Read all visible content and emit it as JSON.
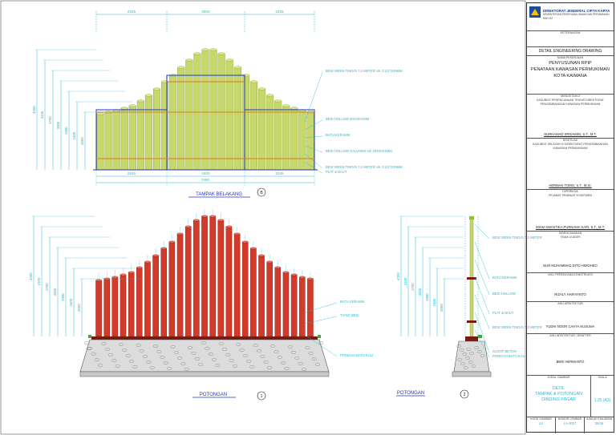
{
  "elevation": {
    "dims_top": [
      "2425",
      "2600",
      "2425"
    ],
    "dims_bottom": [
      "2245",
      "2400",
      "2245"
    ],
    "dim_total": "7450",
    "heights": [
      "4200",
      "4100",
      "3700",
      "3300",
      "2900",
      "2400",
      "2000"
    ],
    "callouts": [
      "BESI SERIN TINGGI 7.2 METER UK 1'1/2\"/100MM",
      "BESI HOLLOW 20X20X1MM",
      "BATU KERAMIK",
      "BESI HOLLOW GALVANIS UK 20X20X1MM",
      "BESI SERIN TINGGI 7.2 METER UK 1'1/2\"/100MM",
      "PLAT & BAUT"
    ],
    "title": "TAMPAK BELAKANG",
    "marker": "B"
  },
  "section1": {
    "heights": [
      "4200",
      "4100",
      "3700",
      "3300",
      "2900",
      "2400",
      "2000"
    ],
    "callouts": [
      "BATU KERAMIK",
      "TIANG BESI",
      "PONDASI BATU KALI"
    ],
    "title": "POTONGAN",
    "marker": "1"
  },
  "section2": {
    "heights": [
      "4200",
      "4100",
      "3700",
      "3300",
      "2900",
      "2400",
      "2000"
    ],
    "callouts": [
      "BESI SERIN TINGGI 7.2 METER",
      "BATU KERAMIK",
      "BESI HOLLOW",
      "PLAT & BAUT",
      "BESI SERIN TINGGI 7.2 METER",
      "SLOOF BETON",
      "PONDASI BATU KALI"
    ],
    "title": "POTONGAN",
    "marker": "2"
  },
  "titleblock": {
    "agency": "DIREKTORAT JENDERAL CIPTA KARYA",
    "agency_sub": "KEMENTERIAN PEKERJAAN UMUM DAN PERUMAHAN RAKYAT",
    "l_keterangan": "KETERANGAN",
    "drawing_type": "DETAIL ENGINEERING DRAWING",
    "l_pekerjaan": "NAMA PEKERJAAN",
    "project_line1": "PENYUSUNAN RPIP",
    "project_line2": "PENATAAN KAWASAN PERMUKIMAN",
    "project_line3": "KOTA KAIMANA",
    "l_mengetahui": "MENGETAHUI",
    "org1": "KASUBDIT PERENCANAAN TEKNIS DIREKTORAT PENGEMBANGAN KAWASAN PERMUKIMAN",
    "name1": "NURHAMAD SRIDAMIN, S.T., M.T.",
    "l_disetujui": "DISETUJUI",
    "org2": "KASUBDIT WILAYAH III DIREKTORAT PENGEMBANGAN KAWASAN PERMUKIMAN",
    "name2": "HERMAN TOMO, S.T., M.SI.",
    "l_diperiksa": "DIPERIKSA",
    "org3": "PEJABAT PEMBUAT KOMITMEN",
    "name3": "IMAM SWASTIKA PURNAMA SARI, S.T., M.T.",
    "l_direncanakan": "DIRENCANAKAN",
    "org4": "TEAM LEADER",
    "name4": "NUR MUHAMMAD DITO HIMOHEO",
    "l_ahli1": "AHLI PERENCANA KONSTRUKSI",
    "name5": "RIZALY HARIYANTO",
    "l_ahli2": "AHLI ARSITEKTUR",
    "name6": "YUDHI NOOR CAHYA KUSUMA",
    "l_drafter": "AHLI ARSITEKTUR / DRAFTER",
    "name7": "BERI HERMANTO",
    "l_judul": "JUDUL GAMBAR",
    "l_skala": "SKALA",
    "title_line1": "DETIL",
    "title_line2": "TAMPAK & POTONGAN",
    "title_line3": "DINDING PAGAR",
    "scale": "1:25 (A3)",
    "l_kode": "KODE GAMBAR",
    "l_nomor": "NOMOR LEMBAR",
    "l_jumlah": "JUMLAH HALAMAN",
    "code": "LU",
    "sheet_no": "LA-0007",
    "total": "38/46"
  },
  "colors": {
    "dim": "#22b8d8",
    "outline": "#2233cc",
    "pipe_fill": "#c6d86a",
    "pipe_red": "#d43a2a",
    "ground": "#b0b0b0",
    "grass": "#3fa83f"
  }
}
